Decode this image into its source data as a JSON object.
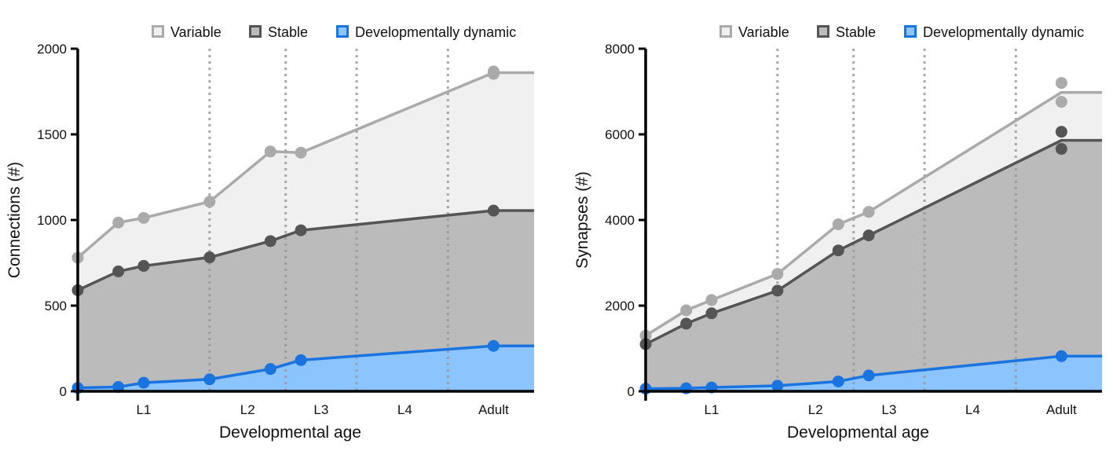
{
  "chart_data": [
    {
      "type": "area",
      "xlabel": "Developmental age",
      "ylabel": "Connections (#)",
      "ylim": [
        0,
        2000
      ],
      "yticks": [
        0,
        500,
        1000,
        1500,
        2000
      ],
      "xlim": [
        0,
        45
      ],
      "stage_labels": [
        {
          "label": "L1",
          "x": 6.5
        },
        {
          "label": "L2",
          "x": 16.75
        },
        {
          "label": "L3",
          "x": 24
        },
        {
          "label": "L4",
          "x": 32.25
        },
        {
          "label": "Adult",
          "x": 41
        }
      ],
      "stage_boundaries": [
        13,
        20.5,
        27.5,
        36.5
      ],
      "legend": {
        "placement": "top",
        "entries": [
          "Variable",
          "Stable",
          "Developmentally dynamic"
        ]
      },
      "series": [
        {
          "name": "Variable",
          "color": "#aaaaaa",
          "fill": "#f0f0f0",
          "points": [
            [
              0,
              780
            ],
            [
              4,
              985
            ],
            [
              6.5,
              1012
            ],
            [
              13,
              1107
            ],
            [
              19,
              1400
            ],
            [
              22,
              1393
            ],
            [
              41,
              1867
            ],
            [
              41,
              1853
            ]
          ],
          "line": [
            [
              0,
              780
            ],
            [
              4,
              985
            ],
            [
              6.5,
              1012
            ],
            [
              13,
              1107
            ],
            [
              19,
              1400
            ],
            [
              22,
              1393
            ],
            [
              41,
              1860
            ],
            [
              45,
              1860
            ]
          ]
        },
        {
          "name": "Stable",
          "color": "#555555",
          "fill": "#bbbbbb",
          "points": [
            [
              0,
              590
            ],
            [
              4,
              700
            ],
            [
              6.5,
              732
            ],
            [
              13,
              782
            ],
            [
              19,
              877
            ],
            [
              22,
              940
            ],
            [
              41,
              1055
            ]
          ],
          "line": [
            [
              0,
              590
            ],
            [
              4,
              700
            ],
            [
              6.5,
              732
            ],
            [
              13,
              782
            ],
            [
              19,
              877
            ],
            [
              22,
              940
            ],
            [
              41,
              1055
            ],
            [
              45,
              1055
            ]
          ]
        },
        {
          "name": "Developmentally dynamic",
          "color": "#1a74e0",
          "fill": "#8cc4ff",
          "points": [
            [
              0,
              20
            ],
            [
              4,
              25
            ],
            [
              6.5,
              50
            ],
            [
              13,
              70
            ],
            [
              19,
              130
            ],
            [
              22,
              182
            ],
            [
              41,
              265
            ]
          ],
          "line": [
            [
              0,
              20
            ],
            [
              4,
              25
            ],
            [
              6.5,
              50
            ],
            [
              13,
              70
            ],
            [
              19,
              130
            ],
            [
              22,
              182
            ],
            [
              41,
              265
            ],
            [
              45,
              265
            ]
          ]
        }
      ]
    },
    {
      "type": "area",
      "xlabel": "Developmental age",
      "ylabel": "Synapses (#)",
      "ylim": [
        0,
        8000
      ],
      "yticks": [
        0,
        2000,
        4000,
        6000,
        8000
      ],
      "xlim": [
        0,
        45
      ],
      "stage_labels": [
        {
          "label": "L1",
          "x": 6.5
        },
        {
          "label": "L2",
          "x": 16.75
        },
        {
          "label": "L3",
          "x": 24
        },
        {
          "label": "L4",
          "x": 32.25
        },
        {
          "label": "Adult",
          "x": 41
        }
      ],
      "stage_boundaries": [
        13,
        20.5,
        27.5,
        36.5
      ],
      "legend": {
        "placement": "top",
        "entries": [
          "Variable",
          "Stable",
          "Developmentally dynamic"
        ]
      },
      "series": [
        {
          "name": "Variable",
          "color": "#aaaaaa",
          "fill": "#f0f0f0",
          "points": [
            [
              0,
              1300
            ],
            [
              4,
              1890
            ],
            [
              6.5,
              2130
            ],
            [
              13,
              2740
            ],
            [
              19,
              3900
            ],
            [
              22,
              4190
            ],
            [
              41,
              7200
            ],
            [
              41,
              6760
            ]
          ],
          "line": [
            [
              0,
              1300
            ],
            [
              4,
              1890
            ],
            [
              6.5,
              2130
            ],
            [
              13,
              2740
            ],
            [
              19,
              3900
            ],
            [
              22,
              4190
            ],
            [
              41,
              6980
            ],
            [
              45,
              6980
            ]
          ]
        },
        {
          "name": "Stable",
          "color": "#555555",
          "fill": "#bbbbbb",
          "points": [
            [
              0,
              1100
            ],
            [
              4,
              1580
            ],
            [
              6.5,
              1820
            ],
            [
              13,
              2350
            ],
            [
              19,
              3290
            ],
            [
              22,
              3640
            ],
            [
              41,
              6060
            ],
            [
              41,
              5660
            ]
          ],
          "line": [
            [
              0,
              1100
            ],
            [
              4,
              1580
            ],
            [
              6.5,
              1820
            ],
            [
              13,
              2350
            ],
            [
              19,
              3290
            ],
            [
              22,
              3640
            ],
            [
              41,
              5860
            ],
            [
              45,
              5860
            ]
          ]
        },
        {
          "name": "Developmentally dynamic",
          "color": "#1a74e0",
          "fill": "#8cc4ff",
          "points": [
            [
              0,
              60
            ],
            [
              4,
              70
            ],
            [
              6.5,
              90
            ],
            [
              13,
              130
            ],
            [
              19,
              230
            ],
            [
              22,
              370
            ],
            [
              41,
              820
            ]
          ],
          "line": [
            [
              0,
              60
            ],
            [
              4,
              70
            ],
            [
              6.5,
              90
            ],
            [
              13,
              130
            ],
            [
              19,
              230
            ],
            [
              22,
              370
            ],
            [
              41,
              820
            ],
            [
              45,
              820
            ]
          ]
        }
      ]
    }
  ]
}
